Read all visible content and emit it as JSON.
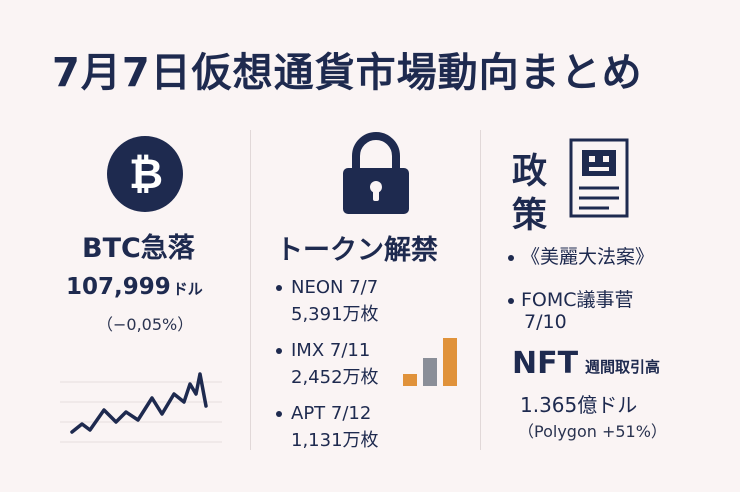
{
  "title": "7月7日仮想通貨市場動向まとめ",
  "colors": {
    "navy": "#1e2a4f",
    "orange": "#e0923a",
    "gray": "#8a8e98",
    "background": "#faf4f4"
  },
  "btc": {
    "icon": "bitcoin-icon",
    "heading": "BTC急落",
    "price": "107,999",
    "price_unit": "ドル",
    "change": "（−0,05%）"
  },
  "token_unlock": {
    "icon": "lock-icon",
    "heading": "トークン解禁",
    "items": [
      {
        "name_date": "NEON 7/7",
        "amount": "5,391万枚"
      },
      {
        "name_date": "IMX 7/11",
        "amount": "2,452万枚"
      },
      {
        "name_date": "APT 7/12",
        "amount": "1,131万枚"
      }
    ]
  },
  "policy": {
    "heading_line1": "政",
    "heading_line2": "策",
    "icon": "document-icon",
    "item1": "《美麗大法案》",
    "item2": "FOMC議事菅",
    "item2_date": "7/10"
  },
  "nft": {
    "label": "NFT",
    "sub": "週間取引高",
    "value": "1.365億ドル",
    "note": "（Polygon +51%）"
  }
}
